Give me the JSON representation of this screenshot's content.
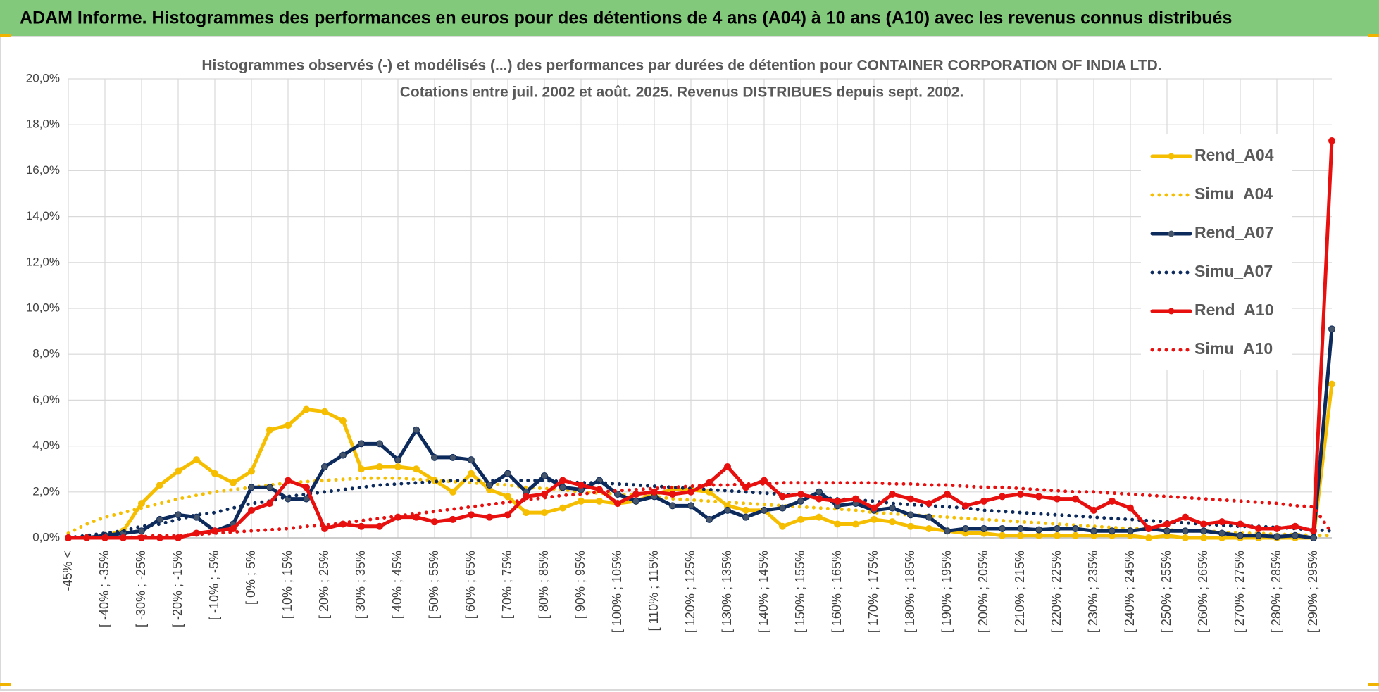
{
  "chart_data": {
    "type": "line",
    "header": "ADAM Informe. Histogrammes des performances en euros pour des détentions de 4 ans (A04) à 10 ans (A10) avec les revenus connus distribués",
    "title": "Histogrammes observés (-) et modélisés (...) des performances par durées de détention pour CONTAINER CORPORATION OF INDIA LTD.",
    "subtitle": "Cotations entre juil. 2002 et août. 2025. Revenus DISTRIBUES depuis sept. 2002.",
    "categories": [
      "-45% <",
      null,
      "[ -40% ; -35%",
      null,
      "[ -30% ; -25%",
      null,
      "[ -20% ; -15%",
      null,
      "[ -10% ; -5%",
      null,
      "[ 0% ; 5%",
      null,
      "[ 10% ; 15%",
      null,
      "[ 20% ; 25%",
      null,
      "[ 30% ; 35%",
      null,
      "[ 40% ; 45%",
      null,
      "[ 50% ; 55%",
      null,
      "[ 60% ; 65%",
      null,
      "[ 70% ; 75%",
      null,
      "[ 80% ; 85%",
      null,
      "[ 90% ; 95%",
      null,
      "[ 100% ; 105%",
      null,
      "[ 110% ; 115%",
      null,
      "[ 120% ; 125%",
      null,
      "[ 130% ; 135%",
      null,
      "[ 140% ; 145%",
      null,
      "[ 150% ; 155%",
      null,
      "[ 160% ; 165%",
      null,
      "[ 170% ; 175%",
      null,
      "[ 180% ; 185%",
      null,
      "[ 190% ; 195%",
      null,
      "[ 200% ; 205%",
      null,
      "[ 210% ; 215%",
      null,
      "[ 220% ; 225%",
      null,
      "[ 230% ; 235%",
      null,
      "[ 240% ; 245%",
      null,
      "[ 250% ; 255%",
      null,
      "[ 260% ; 265%",
      null,
      "[ 270% ; 275%",
      null,
      "[ 280% ; 285%",
      null,
      "[ 290% ; 295%",
      null
    ],
    "ylim": [
      0,
      20
    ],
    "yticks": [
      {
        "value": 0,
        "label": "0,0%"
      },
      {
        "value": 2,
        "label": "2,0%"
      },
      {
        "value": 4,
        "label": "4,0%"
      },
      {
        "value": 6,
        "label": "6,0%"
      },
      {
        "value": 8,
        "label": "8,0%"
      },
      {
        "value": 10,
        "label": "10,0%"
      },
      {
        "value": 12,
        "label": "12,0%"
      },
      {
        "value": 14,
        "label": "14,0%"
      },
      {
        "value": 16,
        "label": "16,0%"
      },
      {
        "value": 18,
        "label": "18,0%"
      },
      {
        "value": 20,
        "label": "20,0%"
      }
    ],
    "grid": true,
    "legend": "right",
    "series": [
      {
        "name": "Rend_A04",
        "color": "#f5be00",
        "dotted": false,
        "markers": true,
        "values": [
          0,
          0,
          0.1,
          0.3,
          1.5,
          2.3,
          2.9,
          3.4,
          2.8,
          2.4,
          2.9,
          4.7,
          4.9,
          5.6,
          5.5,
          5.1,
          3.0,
          3.1,
          3.1,
          3.0,
          2.5,
          2.0,
          2.8,
          2.1,
          1.8,
          1.1,
          1.1,
          1.3,
          1.6,
          1.6,
          1.5,
          1.6,
          1.9,
          2.1,
          2.1,
          2.0,
          1.4,
          1.2,
          1.2,
          0.5,
          0.8,
          0.9,
          0.6,
          0.6,
          0.8,
          0.7,
          0.5,
          0.4,
          0.3,
          0.2,
          0.2,
          0.1,
          0.1,
          0.1,
          0.1,
          0.1,
          0.1,
          0.1,
          0.1,
          0,
          0.1,
          0,
          0,
          0,
          0,
          0,
          0,
          0,
          0,
          6.7
        ]
      },
      {
        "name": "Simu_A04",
        "color": "#f5be00",
        "dotted": true,
        "markers": false,
        "values": [
          0.2,
          0.6,
          0.9,
          1.1,
          1.3,
          1.5,
          1.7,
          1.85,
          2.0,
          2.1,
          2.2,
          2.3,
          2.4,
          2.45,
          2.5,
          2.55,
          2.6,
          2.6,
          2.6,
          2.55,
          2.5,
          2.45,
          2.4,
          2.35,
          2.3,
          2.2,
          2.15,
          2.1,
          2.0,
          1.95,
          1.9,
          1.85,
          1.8,
          1.7,
          1.65,
          1.6,
          1.55,
          1.5,
          1.45,
          1.4,
          1.35,
          1.3,
          1.25,
          1.2,
          1.1,
          1.05,
          1.0,
          0.95,
          0.9,
          0.85,
          0.8,
          0.75,
          0.7,
          0.65,
          0.6,
          0.55,
          0.5,
          0.45,
          0.4,
          0.4,
          0.35,
          0.3,
          0.3,
          0.25,
          0.2,
          0.2,
          0.15,
          0.15,
          0.1,
          0.1
        ]
      },
      {
        "name": "Rend_A07",
        "color": "#0d2a5c",
        "marker_color": "#44546a",
        "dotted": false,
        "markers": true,
        "values": [
          0,
          0,
          0.1,
          0.2,
          0.3,
          0.8,
          1.0,
          0.9,
          0.3,
          0.6,
          2.2,
          2.2,
          1.7,
          1.7,
          3.1,
          3.6,
          4.1,
          4.1,
          3.4,
          4.7,
          3.5,
          3.5,
          3.4,
          2.3,
          2.8,
          2.0,
          2.7,
          2.2,
          2.1,
          2.5,
          1.9,
          1.6,
          1.8,
          1.4,
          1.4,
          0.8,
          1.2,
          0.9,
          1.2,
          1.3,
          1.6,
          2.0,
          1.4,
          1.5,
          1.2,
          1.3,
          1.0,
          0.9,
          0.3,
          0.4,
          0.4,
          0.4,
          0.4,
          0.35,
          0.4,
          0.4,
          0.3,
          0.3,
          0.3,
          0.4,
          0.3,
          0.3,
          0.3,
          0.2,
          0.1,
          0.1,
          0.05,
          0.1,
          0,
          9.1
        ]
      },
      {
        "name": "Simu_A07",
        "color": "#0d2a5c",
        "dotted": true,
        "markers": false,
        "values": [
          0,
          0.1,
          0.2,
          0.3,
          0.5,
          0.6,
          0.8,
          1.0,
          1.1,
          1.3,
          1.5,
          1.6,
          1.8,
          1.9,
          2.0,
          2.1,
          2.2,
          2.3,
          2.35,
          2.4,
          2.45,
          2.5,
          2.5,
          2.5,
          2.5,
          2.5,
          2.5,
          2.45,
          2.4,
          2.4,
          2.35,
          2.3,
          2.25,
          2.2,
          2.15,
          2.1,
          2.05,
          2.0,
          1.95,
          1.9,
          1.85,
          1.75,
          1.7,
          1.65,
          1.6,
          1.5,
          1.45,
          1.4,
          1.35,
          1.3,
          1.2,
          1.15,
          1.1,
          1.05,
          1.0,
          0.95,
          0.9,
          0.85,
          0.8,
          0.75,
          0.7,
          0.65,
          0.6,
          0.55,
          0.5,
          0.5,
          0.45,
          0.4,
          0.35,
          0.3
        ]
      },
      {
        "name": "Rend_A10",
        "color": "#e8100e",
        "dotted": false,
        "markers": true,
        "values": [
          0,
          0,
          0,
          0,
          0,
          0,
          0,
          0.2,
          0.3,
          0.4,
          1.2,
          1.5,
          2.5,
          2.2,
          0.4,
          0.6,
          0.5,
          0.5,
          0.9,
          0.9,
          0.7,
          0.8,
          1.0,
          0.9,
          1.0,
          1.8,
          1.9,
          2.5,
          2.3,
          2.1,
          1.5,
          1.9,
          2.0,
          1.9,
          2.0,
          2.4,
          3.1,
          2.2,
          2.5,
          1.8,
          1.9,
          1.7,
          1.6,
          1.7,
          1.3,
          1.9,
          1.7,
          1.5,
          1.9,
          1.4,
          1.6,
          1.8,
          1.9,
          1.8,
          1.7,
          1.7,
          1.2,
          1.6,
          1.3,
          0.4,
          0.6,
          0.9,
          0.6,
          0.7,
          0.6,
          0.4,
          0.4,
          0.5,
          0.3,
          17.3
        ]
      },
      {
        "name": "Simu_A10",
        "color": "#e8100e",
        "dotted": true,
        "markers": false,
        "values": [
          0,
          0,
          0,
          0,
          0.05,
          0.1,
          0.1,
          0.15,
          0.2,
          0.25,
          0.3,
          0.35,
          0.4,
          0.5,
          0.55,
          0.65,
          0.75,
          0.85,
          0.95,
          1.05,
          1.15,
          1.25,
          1.35,
          1.45,
          1.55,
          1.65,
          1.75,
          1.85,
          1.9,
          2.0,
          2.05,
          2.1,
          2.15,
          2.2,
          2.25,
          2.3,
          2.3,
          2.35,
          2.35,
          2.4,
          2.4,
          2.4,
          2.4,
          2.4,
          2.4,
          2.35,
          2.35,
          2.3,
          2.3,
          2.25,
          2.2,
          2.2,
          2.15,
          2.1,
          2.05,
          2.0,
          2.0,
          1.95,
          1.9,
          1.85,
          1.8,
          1.75,
          1.7,
          1.65,
          1.6,
          1.55,
          1.5,
          1.4,
          1.35,
          0.2
        ]
      }
    ]
  }
}
